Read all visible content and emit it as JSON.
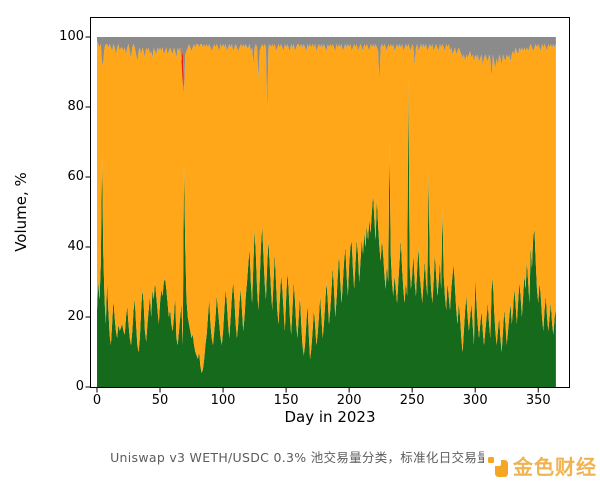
{
  "figure": {
    "ylabel": "Volume, %",
    "xlabel": "Day in 2023"
  },
  "caption": "Uniswap v3 WETH/USDC 0.3% 池交易量分类，标准化日交易量",
  "logo": {
    "text": "金色财经"
  },
  "colors": {
    "green": "#166a1c",
    "orange": "#ffa718",
    "gray": "#8b8b8b",
    "red": "#ed1c0e",
    "axis": "#000000",
    "caption": "#5c5c5c",
    "logo": "#f5a623"
  },
  "chart_data": {
    "type": "area",
    "stacked": true,
    "normalized": true,
    "unit": "%",
    "title": "",
    "xlabel": "Day in 2023",
    "ylabel": "Volume, %",
    "x_range": [
      0,
      364
    ],
    "ylim": [
      0,
      100
    ],
    "xticks": [
      0,
      50,
      100,
      150,
      200,
      250,
      300,
      350
    ],
    "yticks": [
      0,
      20,
      40,
      60,
      80,
      100
    ],
    "grid": false,
    "legend": "none",
    "stack_order_bottom_to_top": [
      "green",
      "orange",
      "red",
      "gray"
    ],
    "series": {
      "green": [
        22,
        30,
        25,
        35,
        66,
        38,
        25,
        18,
        30,
        22,
        15,
        12,
        18,
        25,
        20,
        16,
        14,
        18,
        16,
        17,
        18,
        16,
        15,
        20,
        23,
        18,
        14,
        12,
        16,
        22,
        25,
        18,
        12,
        10,
        14,
        22,
        28,
        24,
        16,
        13,
        18,
        22,
        26,
        20,
        28,
        25,
        30,
        26,
        22,
        18,
        24,
        28,
        26,
        30,
        31,
        28,
        24,
        20,
        22,
        18,
        16,
        20,
        26,
        14,
        12,
        16,
        20,
        24,
        12,
        64,
        40,
        25,
        20,
        18,
        16,
        14,
        15,
        12,
        10,
        9,
        8,
        10,
        6,
        4,
        5,
        8,
        12,
        15,
        20,
        25,
        18,
        14,
        12,
        16,
        20,
        26,
        22,
        18,
        14,
        12,
        16,
        22,
        28,
        24,
        18,
        14,
        20,
        26,
        30,
        25,
        18,
        14,
        18,
        24,
        28,
        22,
        16,
        20,
        26,
        30,
        35,
        40,
        30,
        24,
        35,
        45,
        38,
        28,
        22,
        30,
        40,
        46,
        38,
        30,
        25,
        35,
        42,
        35,
        28,
        22,
        30,
        38,
        30,
        22,
        18,
        25,
        32,
        28,
        22,
        16,
        25,
        33,
        28,
        20,
        15,
        22,
        30,
        25,
        18,
        14,
        20,
        26,
        18,
        12,
        9,
        12,
        18,
        24,
        15,
        8,
        11,
        16,
        22,
        18,
        12,
        15,
        20,
        26,
        20,
        14,
        18,
        24,
        30,
        25,
        18,
        22,
        28,
        34,
        28,
        20,
        25,
        32,
        38,
        30,
        24,
        30,
        36,
        40,
        32,
        26,
        35,
        40,
        42,
        34,
        28,
        35,
        42,
        38,
        30,
        36,
        42,
        38,
        44,
        40,
        46,
        42,
        48,
        44,
        50,
        55,
        48,
        42,
        54,
        46,
        40,
        36,
        42,
        38,
        32,
        28,
        35,
        30,
        70,
        38,
        30,
        26,
        32,
        28,
        24,
        30,
        36,
        42,
        34,
        28,
        24,
        30,
        26,
        88,
        35,
        28,
        32,
        38,
        30,
        26,
        34,
        40,
        32,
        28,
        24,
        30,
        36,
        30,
        26,
        62,
        35,
        28,
        24,
        30,
        38,
        32,
        26,
        30,
        36,
        28,
        51,
        32,
        26,
        22,
        30,
        26,
        22,
        28,
        32,
        35,
        28,
        22,
        18,
        24,
        20,
        14,
        10,
        16,
        22,
        26,
        20,
        16,
        20,
        24,
        18,
        12,
        31,
        24,
        18,
        14,
        18,
        22,
        16,
        12,
        16,
        20,
        24,
        18,
        14,
        28,
        31,
        22,
        16,
        12,
        16,
        20,
        14,
        10,
        16,
        22,
        18,
        12,
        16,
        20,
        24,
        18,
        22,
        28,
        24,
        18,
        24,
        30,
        26,
        20,
        26,
        32,
        28,
        36,
        30,
        24,
        40,
        34,
        43,
        45,
        36,
        28,
        24,
        30,
        26,
        20,
        16,
        22,
        26,
        20,
        16,
        20,
        24,
        18,
        15,
        20,
        22
      ],
      "gray": [
        1,
        2,
        3,
        2,
        8,
        7,
        3,
        2,
        2,
        3,
        2,
        3,
        4,
        2,
        3,
        5,
        3,
        2,
        4,
        3,
        3,
        4,
        3,
        5,
        3,
        2,
        4,
        6,
        3,
        2,
        3,
        5,
        7,
        4,
        3,
        5,
        3,
        4,
        6,
        3,
        4,
        3,
        5,
        4,
        6,
        3,
        4,
        5,
        3,
        4,
        3,
        4,
        3,
        5,
        4,
        3,
        5,
        4,
        3,
        4,
        5,
        3,
        4,
        6,
        3,
        4,
        3,
        7,
        3,
        16,
        5,
        4,
        3,
        2,
        3,
        4,
        3,
        2,
        3,
        2,
        2,
        3,
        2,
        2,
        3,
        2,
        3,
        2,
        3,
        2,
        3,
        4,
        3,
        2,
        3,
        2,
        3,
        4,
        2,
        3,
        2,
        3,
        2,
        4,
        3,
        2,
        3,
        2,
        4,
        3,
        2,
        3,
        4,
        3,
        2,
        3,
        2,
        3,
        2,
        3,
        3,
        2,
        4,
        3,
        8,
        3,
        2,
        3,
        12,
        4,
        3,
        2,
        3,
        2,
        3,
        21,
        3,
        2,
        3,
        2,
        3,
        2,
        4,
        3,
        2,
        3,
        2,
        3,
        4,
        2,
        3,
        2,
        3,
        4,
        2,
        3,
        2,
        4,
        3,
        2,
        2,
        3,
        2,
        3,
        2,
        3,
        4,
        2,
        3,
        2,
        3,
        2,
        3,
        2,
        4,
        3,
        2,
        3,
        2,
        3,
        2,
        3,
        4,
        2,
        3,
        2,
        3,
        2,
        3,
        4,
        2,
        3,
        2,
        3,
        2,
        4,
        3,
        2,
        3,
        2,
        3,
        2,
        4,
        3,
        2,
        3,
        2,
        4,
        3,
        2,
        3,
        4,
        2,
        3,
        2,
        3,
        4,
        2,
        3,
        2,
        3,
        2,
        3,
        4,
        13,
        3,
        2,
        3,
        2,
        3,
        4,
        2,
        3,
        2,
        3,
        2,
        4,
        3,
        2,
        3,
        2,
        3,
        2,
        4,
        3,
        2,
        3,
        2,
        3,
        4,
        2,
        3,
        8,
        3,
        2,
        4,
        3,
        2,
        3,
        2,
        3,
        2,
        4,
        3,
        2,
        3,
        2,
        4,
        3,
        2,
        3,
        4,
        2,
        3,
        2,
        3,
        4,
        2,
        3,
        2,
        4,
        3,
        5,
        4,
        3,
        5,
        4,
        3,
        4,
        5,
        6,
        5,
        7,
        5,
        6,
        5,
        4,
        6,
        5,
        7,
        5,
        6,
        5,
        7,
        6,
        5,
        8,
        6,
        5,
        6,
        7,
        5,
        6,
        12,
        5,
        7,
        9,
        6,
        8,
        5,
        6,
        8,
        5,
        6,
        7,
        5,
        6,
        5,
        7,
        5,
        4,
        5,
        3,
        4,
        5,
        3,
        4,
        3,
        4,
        3,
        4,
        3,
        4,
        3,
        2,
        3,
        4,
        3,
        2,
        3,
        2,
        3,
        4,
        2,
        3,
        2,
        3,
        4,
        2,
        3,
        2,
        3,
        2,
        3,
        2
      ],
      "red_sparse": {
        "68": 10
      },
      "orange": "remainder to 100"
    }
  }
}
